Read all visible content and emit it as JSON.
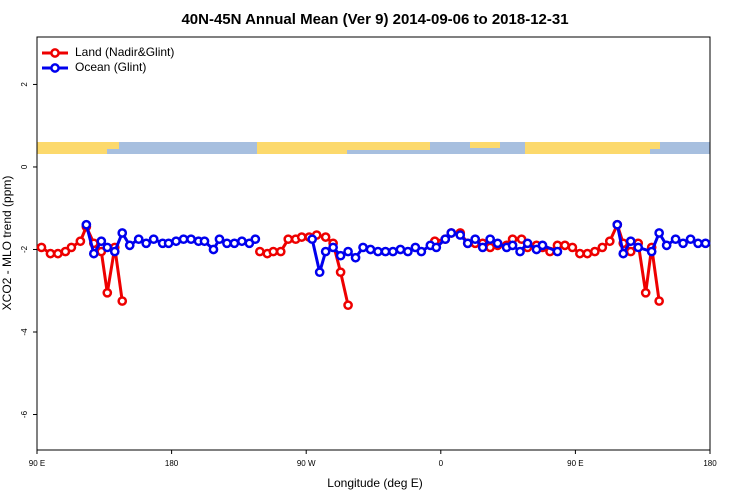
{
  "chart_data": {
    "type": "line",
    "title": "40N-45N Annual Mean (Ver 9)   2014-09-06 to 2018-12-31",
    "x_label": "Longitude (deg E)",
    "y_label": "XCO2 - MLO trend (ppm)",
    "xlim": [
      90,
      540
    ],
    "ylim": [
      -6.86,
      3.15
    ],
    "xticks": [
      {
        "value": 90,
        "label": "90 E"
      },
      180,
      {
        "value": 270,
        "label": "90 W"
      },
      {
        "value": 360,
        "label": "0"
      },
      {
        "value": 450,
        "label": "90 E"
      },
      {
        "value": 540,
        "label": "180"
      }
    ],
    "yticks": [
      -6,
      -4,
      -2,
      0,
      2
    ],
    "legend": "upper left",
    "series": [
      {
        "name": "Land (Nadir&Glint)",
        "color": "#ee0000",
        "x": [
          93,
          99,
          104,
          109,
          113,
          119,
          123,
          128,
          133,
          137,
          142,
          147,
          null,
          239,
          244,
          248,
          253,
          258,
          263,
          267,
          272,
          277,
          283,
          288,
          293,
          298,
          null,
          356,
          363,
          367,
          373,
          378,
          383,
          388,
          393,
          398,
          404,
          408,
          414,
          418,
          424,
          428,
          433,
          438,
          443,
          448,
          453,
          458,
          463,
          468,
          473,
          478,
          482,
          487,
          492,
          497,
          501,
          506
        ],
        "values": [
          -1.95,
          -2.1,
          -2.1,
          -2.05,
          -1.95,
          -1.8,
          -1.45,
          -1.85,
          -2.05,
          -3.05,
          -1.95,
          -3.25,
          null,
          -2.05,
          -2.1,
          -2.05,
          -2.05,
          -1.75,
          -1.75,
          -1.7,
          -1.7,
          -1.65,
          -1.7,
          -1.85,
          -2.55,
          -3.35,
          null,
          -1.8,
          -1.75,
          -1.6,
          -1.6,
          -1.85,
          -1.85,
          -1.85,
          -1.95,
          -1.9,
          -1.9,
          -1.75,
          -1.75,
          -1.95,
          -1.9,
          -1.95,
          -2.05,
          -1.9,
          -1.9,
          -1.95,
          -2.1,
          -2.1,
          -2.05,
          -1.95,
          -1.8,
          -1.4,
          -1.85,
          -2.05,
          -1.85,
          -3.05,
          -1.95,
          -3.25
        ]
      },
      {
        "name": "Ocean (Glint)",
        "color": "#0000ee",
        "x": [
          123,
          128,
          133,
          137,
          142,
          147,
          152,
          158,
          163,
          168,
          174,
          178,
          183,
          188,
          193,
          198,
          202,
          208,
          212,
          217,
          222,
          227,
          232,
          236,
          null,
          274,
          279,
          283,
          288,
          293,
          298,
          303,
          308,
          313,
          318,
          323,
          328,
          333,
          338,
          343,
          347,
          353,
          357,
          363,
          367,
          373,
          378,
          383,
          388,
          393,
          398,
          404,
          408,
          413,
          418,
          424,
          428,
          438,
          null,
          478,
          482,
          487,
          492,
          501,
          506,
          511,
          517,
          522,
          527,
          532,
          537
        ],
        "values": [
          -1.4,
          -2.1,
          -1.8,
          -1.95,
          -2.05,
          -1.6,
          -1.9,
          -1.75,
          -1.85,
          -1.75,
          -1.85,
          -1.85,
          -1.8,
          -1.75,
          -1.75,
          -1.8,
          -1.8,
          -2.0,
          -1.75,
          -1.85,
          -1.85,
          -1.8,
          -1.85,
          -1.75,
          null,
          -1.75,
          -2.55,
          -2.05,
          -1.95,
          -2.15,
          -2.05,
          -2.2,
          -1.95,
          -2.0,
          -2.05,
          -2.05,
          -2.05,
          -2.0,
          -2.05,
          -1.95,
          -2.05,
          -1.9,
          -1.95,
          -1.75,
          -1.6,
          -1.65,
          -1.85,
          -1.75,
          -1.95,
          -1.75,
          -1.85,
          -1.95,
          -1.9,
          -2.05,
          -1.85,
          -2.0,
          -1.9,
          -2.05,
          null,
          -1.4,
          -2.1,
          -1.8,
          -1.95,
          -2.05,
          -1.6,
          -1.9,
          -1.75,
          -1.85,
          -1.75,
          -1.85,
          -1.85
        ]
      }
    ]
  }
}
